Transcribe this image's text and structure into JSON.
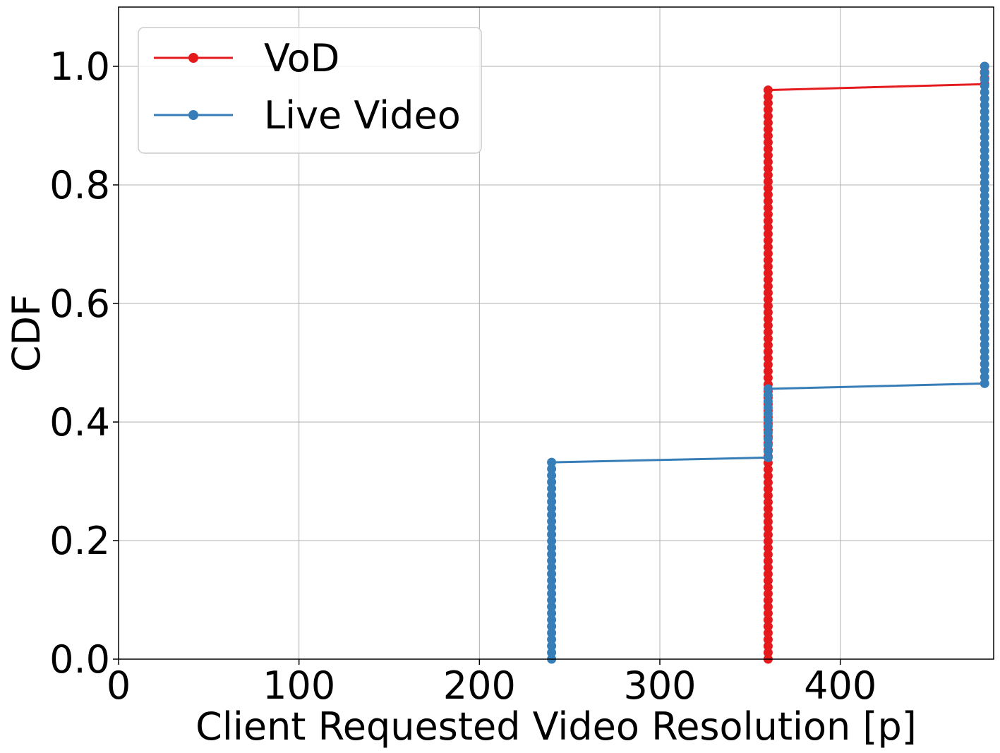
{
  "chart_data": {
    "type": "line",
    "xlabel": "Client Requested Video Resolution [p]",
    "ylabel": "CDF",
    "xlim": [
      0,
      485
    ],
    "ylim": [
      0,
      1.1
    ],
    "xticks": [
      0,
      100,
      200,
      300,
      400
    ],
    "xtick_labels": [
      "0",
      "100",
      "200",
      "300",
      "400"
    ],
    "yticks": [
      0.0,
      0.2,
      0.4,
      0.6,
      0.8,
      1.0
    ],
    "ytick_labels": [
      "0.0",
      "0.2",
      "0.4",
      "0.6",
      "0.8",
      "1.0"
    ],
    "grid": true,
    "legend_position": "top-left",
    "series": [
      {
        "name": "VoD",
        "color": "#e41a1c",
        "segments": [
          {
            "x": 360,
            "y_from": 0.0,
            "y_to": 0.96
          },
          {
            "x": 480,
            "y_from": 0.97,
            "y_to": 1.0
          }
        ]
      },
      {
        "name": "Live Video",
        "color": "#377eb8",
        "segments": [
          {
            "x": 240,
            "y_from": 0.0,
            "y_to": 0.332
          },
          {
            "x": 360,
            "y_from": 0.34,
            "y_to": 0.456
          },
          {
            "x": 480,
            "y_from": 0.465,
            "y_to": 1.0
          }
        ]
      }
    ]
  }
}
